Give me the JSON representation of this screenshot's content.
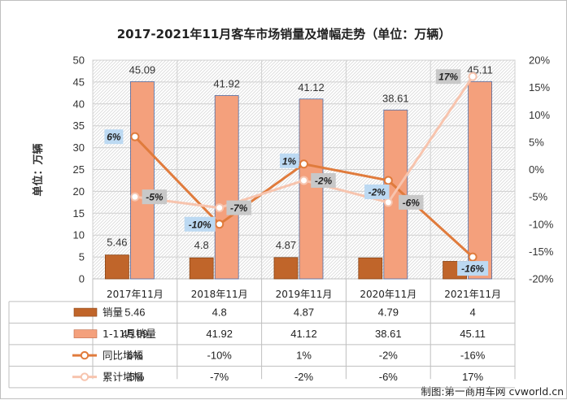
{
  "chart_data": {
    "type": "bar",
    "title": "2017-2021年11月客车市场销量及增幅走势（单位：万辆）",
    "ylabel": "单位：万辆",
    "ylim": [
      0,
      50
    ],
    "y_ticks": [
      "0",
      "5",
      "10",
      "15",
      "20",
      "25",
      "30",
      "35",
      "40",
      "45",
      "50"
    ],
    "y2lim": [
      -20,
      20
    ],
    "y2_ticks": [
      "-20%",
      "-15%",
      "-10%",
      "-5%",
      "0%",
      "5%",
      "10%",
      "15%",
      "20%"
    ],
    "categories": [
      "2017年11月",
      "2018年11月",
      "2019年11月",
      "2020年11月",
      "2021年11月"
    ],
    "series": [
      {
        "name": "销量",
        "kind": "bar",
        "axis": "left",
        "color": "#c0652a",
        "values": [
          5.46,
          4.8,
          4.87,
          4.79,
          4
        ],
        "table": [
          "5.46",
          "4.8",
          "4.87",
          "4.79",
          "4"
        ],
        "labels": [
          "5.46",
          "4.8",
          "4.87",
          "",
          ""
        ]
      },
      {
        "name": "1-11月销量",
        "kind": "bar",
        "axis": "left",
        "color": "#f4a07c",
        "values": [
          45.09,
          41.92,
          41.12,
          38.61,
          45.11
        ],
        "table": [
          "45.09",
          "41.92",
          "41.12",
          "38.61",
          "45.11"
        ],
        "labels": [
          "45.09",
          "41.92",
          "41.12",
          "38.61",
          "45.11"
        ]
      },
      {
        "name": "同比增幅",
        "kind": "line",
        "axis": "right",
        "color": "#e07b3c",
        "values": [
          6,
          -10,
          1,
          -2,
          -16
        ],
        "table": [
          "6%",
          "-10%",
          "1%",
          "-2%",
          "-16%"
        ],
        "labels": [
          "6%",
          "-10%",
          "1%",
          "-2%",
          "-16%"
        ]
      },
      {
        "name": "累计增幅",
        "kind": "line",
        "axis": "right",
        "color": "#f7c4ae",
        "values": [
          -5,
          -7,
          -2,
          -6,
          17
        ],
        "table": [
          "-5%",
          "-7%",
          "-2%",
          "-6%",
          "17%"
        ],
        "labels": [
          "-5%",
          "-7%",
          "-2%",
          "-6%",
          "17%"
        ]
      }
    ]
  },
  "credit": "制图:第一商用车网 cvworld.cn"
}
